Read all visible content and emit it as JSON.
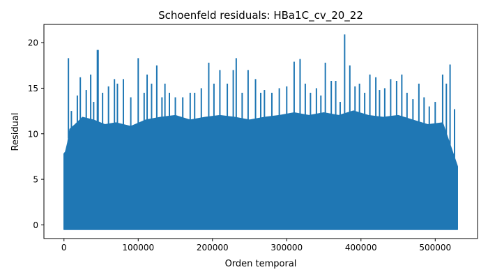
{
  "chart_data": {
    "type": "line",
    "title": "Schoenfeld residuals: HBa1C_cv_20_22",
    "xlabel": "Orden temporal",
    "ylabel": "Residual",
    "xlim": [
      -27000,
      557000
    ],
    "ylim": [
      -1.5,
      22
    ],
    "x_ticks": [
      0,
      100000,
      200000,
      300000,
      400000,
      500000
    ],
    "x_tick_labels": [
      "0",
      "100000",
      "200000",
      "300000",
      "400000",
      "500000"
    ],
    "y_ticks": [
      0,
      5,
      10,
      15,
      20
    ],
    "y_tick_labels": [
      "0",
      "5",
      "10",
      "15",
      "20"
    ],
    "grid": false,
    "legend": "none",
    "series_color": "#1f77b4",
    "series": [
      {
        "x_range": [
          0,
          530000
        ],
        "y_min": -0.5,
        "envelope": {
          "x": [
            0,
            2000,
            5000,
            8000,
            15000,
            25000,
            40000,
            55000,
            70000,
            90000,
            110000,
            130000,
            150000,
            170000,
            190000,
            210000,
            230000,
            250000,
            270000,
            290000,
            310000,
            330000,
            350000,
            370000,
            390000,
            410000,
            430000,
            450000,
            470000,
            490000,
            510000,
            530000
          ],
          "y": [
            7.8,
            8.0,
            9.0,
            10.5,
            11.0,
            11.8,
            11.5,
            11.0,
            11.2,
            10.8,
            11.5,
            11.8,
            12.0,
            11.5,
            11.8,
            12.0,
            11.8,
            11.5,
            11.8,
            12.0,
            12.3,
            12.0,
            12.3,
            12.0,
            12.5,
            12.0,
            11.8,
            12.0,
            11.5,
            11.0,
            11.2,
            6.4
          ]
        },
        "spikes": {
          "x": [
            6000,
            10000,
            18000,
            22000,
            30000,
            36000,
            40000,
            45000,
            46000,
            52000,
            60000,
            68000,
            72000,
            80000,
            90000,
            100000,
            108000,
            112000,
            118000,
            125000,
            132000,
            136000,
            142000,
            150000,
            160000,
            170000,
            176000,
            185000,
            195000,
            202000,
            210000,
            220000,
            228000,
            232000,
            240000,
            248000,
            258000,
            265000,
            270000,
            280000,
            290000,
            300000,
            310000,
            318000,
            325000,
            332000,
            340000,
            346000,
            352000,
            360000,
            366000,
            372000,
            378000,
            385000,
            392000,
            398000,
            405000,
            412000,
            420000,
            425000,
            432000,
            440000,
            448000,
            455000,
            462000,
            470000,
            478000,
            485000,
            492000,
            500000,
            510000,
            515000,
            520000,
            526000
          ],
          "y": [
            18.3,
            12.5,
            14.2,
            16.2,
            14.8,
            16.5,
            13.5,
            19.2,
            19.2,
            14.5,
            15.2,
            16.0,
            15.5,
            16.0,
            14.0,
            18.3,
            14.5,
            16.5,
            15.5,
            17.5,
            14.0,
            15.5,
            14.5,
            14.0,
            14.0,
            14.5,
            14.5,
            15.0,
            17.8,
            15.5,
            17.0,
            15.5,
            17.0,
            18.3,
            14.5,
            17.0,
            16.0,
            14.5,
            14.8,
            14.5,
            15.0,
            15.2,
            17.9,
            18.2,
            15.5,
            14.5,
            15.0,
            14.2,
            17.8,
            15.8,
            15.8,
            13.5,
            20.9,
            17.5,
            15.2,
            15.5,
            14.5,
            16.5,
            16.2,
            14.8,
            15.0,
            16.0,
            15.8,
            16.5,
            14.5,
            13.8,
            15.5,
            14.0,
            13.0,
            13.5,
            16.5,
            15.5,
            17.6,
            12.7
          ]
        }
      }
    ]
  }
}
